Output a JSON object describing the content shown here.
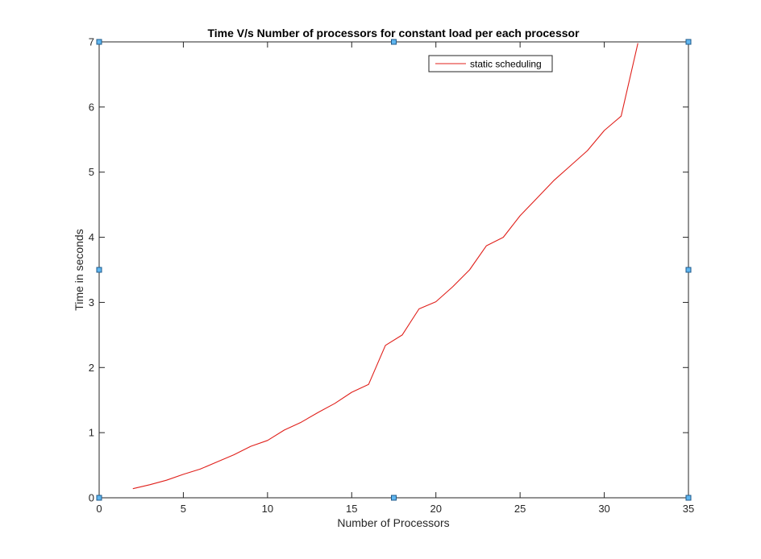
{
  "chart_data": {
    "type": "line",
    "title": "Time V/s Number of processors for constant load per each processor",
    "xlabel": "Number of Processors",
    "ylabel": "Time in seconds",
    "xlim": [
      0,
      35
    ],
    "ylim": [
      0,
      7
    ],
    "xticks": [
      "0",
      "5",
      "10",
      "15",
      "20",
      "25",
      "30",
      "35"
    ],
    "yticks": [
      "0",
      "1",
      "2",
      "3",
      "4",
      "5",
      "6",
      "7"
    ],
    "grid": false,
    "legend_position": "top-right",
    "series": [
      {
        "name": "static scheduling",
        "color": "#e0201b",
        "x": [
          2,
          3,
          4,
          5,
          6,
          7,
          8,
          9,
          10,
          11,
          12,
          13,
          14,
          15,
          16,
          17,
          18,
          19,
          20,
          21,
          22,
          23,
          24,
          25,
          26,
          27,
          28,
          29,
          30,
          31,
          32
        ],
        "y": [
          0.14,
          0.2,
          0.27,
          0.36,
          0.44,
          0.55,
          0.66,
          0.79,
          0.88,
          1.04,
          1.16,
          1.31,
          1.45,
          1.62,
          1.74,
          2.34,
          2.5,
          2.9,
          3.01,
          3.24,
          3.5,
          3.87,
          4.0,
          4.33,
          4.6,
          4.87,
          5.1,
          5.33,
          5.64,
          5.86,
          6.98
        ]
      }
    ]
  }
}
